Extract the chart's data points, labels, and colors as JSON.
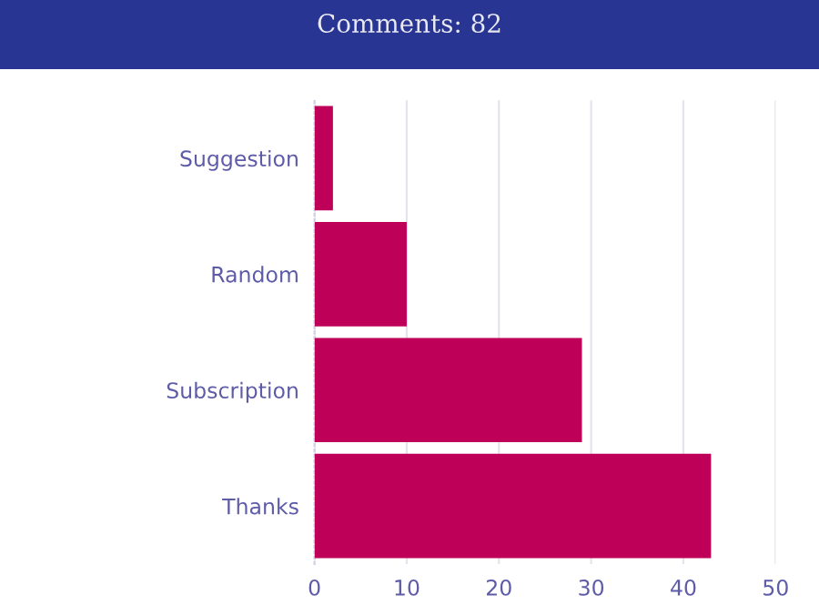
{
  "chart_data": {
    "type": "bar",
    "orientation": "horizontal",
    "title": "Comments: 82",
    "categories": [
      "Suggestion",
      "Random",
      "Subscription",
      "Thanks"
    ],
    "values": [
      2,
      10,
      29,
      43
    ],
    "color": "#be0058",
    "xlim": [
      0,
      50
    ],
    "xticks": [
      0,
      10,
      20,
      30,
      40,
      50
    ],
    "grid": "x",
    "legend": false
  }
}
